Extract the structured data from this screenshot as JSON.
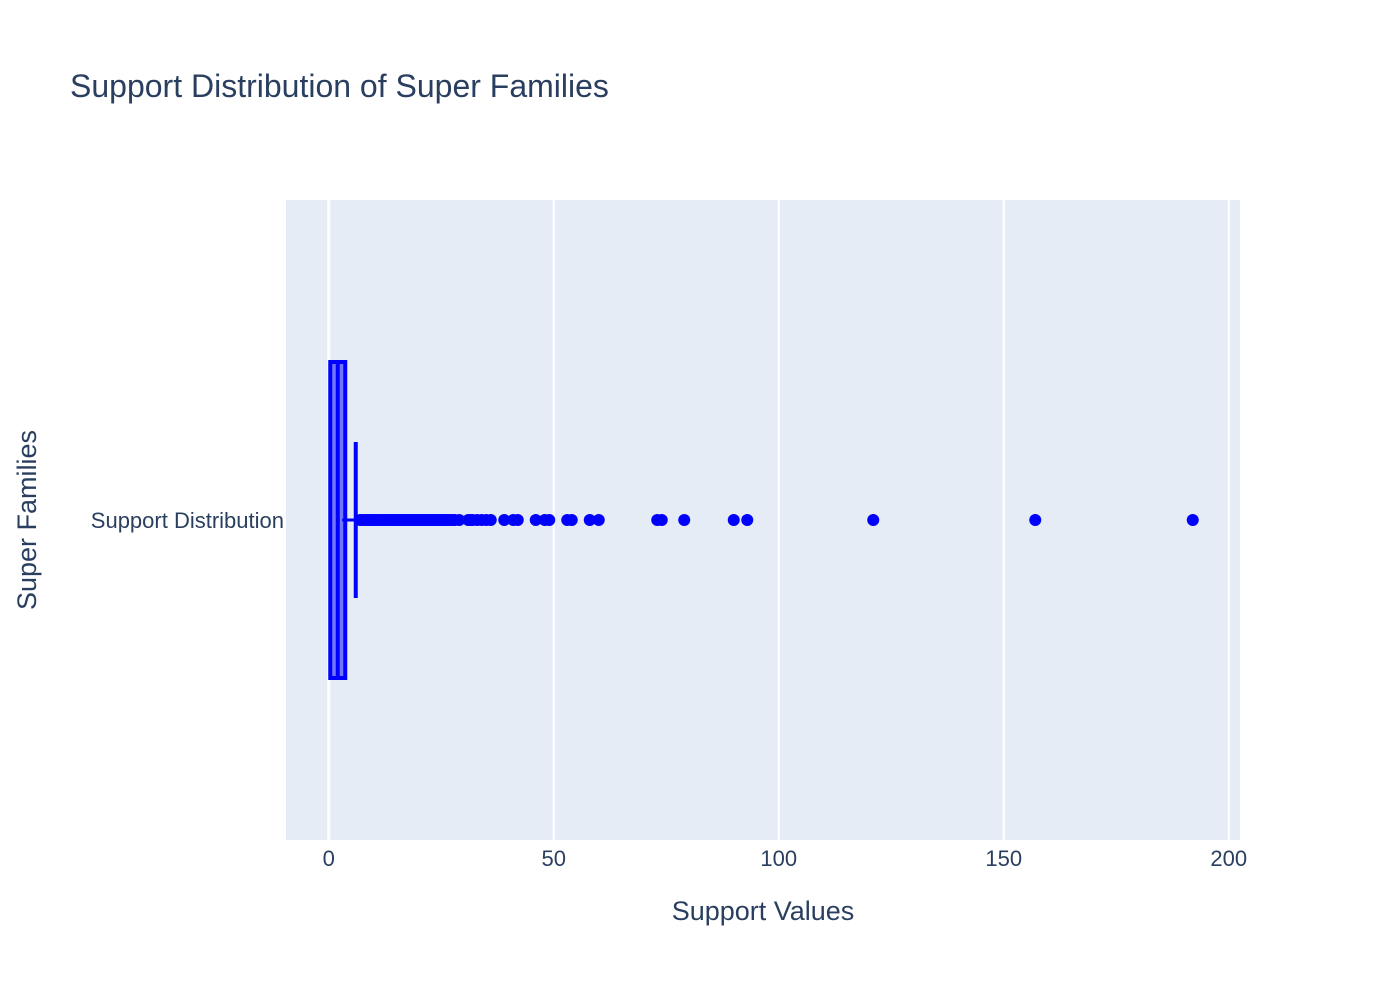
{
  "chart_data": {
    "type": "box",
    "title": "Support Distribution of Super Families",
    "xlabel": "Support Values",
    "ylabel": "Super Families",
    "xlim": [
      -9.5,
      202.5
    ],
    "x_ticks": [
      0,
      50,
      100,
      150,
      200
    ],
    "orientation": "horizontal",
    "grid": true,
    "colors": {
      "box": "#0000ff",
      "plot_bg": "#e5ecf6",
      "grid": "#ffffff",
      "text": "#2a3f5f"
    },
    "series": [
      {
        "name": "Support Distribution",
        "min": 1,
        "q1": 1,
        "median": 2,
        "q3": 3,
        "upper_fence": 6,
        "outliers": [
          7,
          7.5,
          8,
          8.5,
          9,
          9.5,
          10,
          10.5,
          11,
          11.5,
          12,
          12.5,
          13,
          13.5,
          14,
          14.5,
          15,
          15.5,
          16,
          16.5,
          17,
          17.5,
          18,
          18.5,
          19,
          19.5,
          20,
          20.5,
          21,
          21.5,
          22,
          22.5,
          23,
          23.5,
          24,
          24.5,
          25,
          25.5,
          26,
          26.5,
          27,
          27.5,
          28,
          29,
          31,
          31.5,
          32,
          33,
          34,
          35,
          36,
          39,
          41,
          42,
          46,
          48,
          49,
          53,
          54,
          58,
          60,
          73,
          74,
          79,
          90,
          93,
          121,
          157,
          192
        ]
      }
    ]
  }
}
